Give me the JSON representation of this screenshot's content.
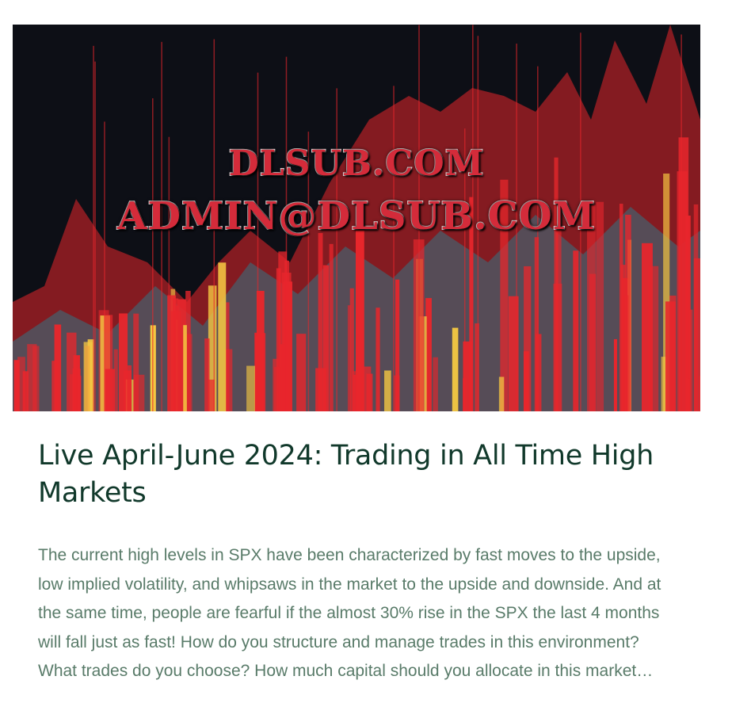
{
  "post": {
    "image": {
      "watermark_line1": "DLSUB.COM",
      "watermark_line2": "ADMIN@DLSUB.COM",
      "colors": {
        "background": "#0d0f16",
        "bars": "#e8262c",
        "highlight": "#f5c842",
        "teal": "#1f8a9a"
      }
    },
    "title": "Live April-June 2024: Trading in All Time High Markets",
    "excerpt": "The current high levels in SPX have been characterized by fast moves to the upside, low implied volatility, and whipsaws in the market to the upside and downside. And at the same time, people are fearful if the almost 30% rise in the SPX the last 4 months will fall just as fast! How do you structure and manage trades in this environment? What trades do you choose? How much capital should you allocate in this market…"
  }
}
